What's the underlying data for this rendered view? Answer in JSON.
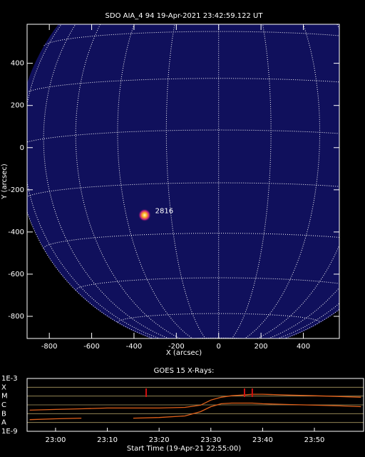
{
  "chart_data": [
    {
      "type": "image",
      "title": "SDO AIA_4 94 19-Apr-2021 23:42:59.122 UT",
      "xlabel": "X (arcsec)",
      "ylabel": "Y (arcsec)",
      "xlim": [
        -905,
        570
      ],
      "ylim": [
        -905,
        585
      ],
      "xticks": [
        -800,
        -600,
        -400,
        -200,
        0,
        200,
        400
      ],
      "yticks": [
        -800,
        -600,
        -400,
        -200,
        0,
        200,
        400
      ],
      "annotations": [
        "2816"
      ]
    },
    {
      "type": "line",
      "title": "GOES 15 X-Rays:",
      "xlabel": "Start Time (19-Apr-21 22:55:00)",
      "ylog": true,
      "xlim": [
        -0.5,
        64.5
      ],
      "ylim": [
        1e-09,
        0.001
      ],
      "xticks": [
        {
          "value": 5,
          "label": "23:00"
        },
        {
          "value": 15,
          "label": "23:10"
        },
        {
          "value": 25,
          "label": "23:20"
        },
        {
          "value": 35,
          "label": "23:30"
        },
        {
          "value": 45,
          "label": "23:40"
        },
        {
          "value": 55,
          "label": "23:50"
        }
      ],
      "yticks": [
        {
          "value": 0.001,
          "label": "1E-3"
        },
        {
          "value": 0.0001,
          "label": "X"
        },
        {
          "value": 1e-05,
          "label": "M"
        },
        {
          "value": 1e-06,
          "label": "C"
        },
        {
          "value": 1e-07,
          "label": "B"
        },
        {
          "value": 1e-08,
          "label": "A"
        },
        {
          "value": 1e-09,
          "label": "1E-9"
        }
      ],
      "grid": true,
      "x": [
        0,
        5,
        10,
        15,
        20,
        25,
        30,
        33,
        35,
        37,
        39,
        41,
        43,
        45,
        50,
        55,
        60,
        64
      ],
      "series": [
        {
          "color": "#e0601a",
          "values": [
            2.5e-07,
            3e-07,
            3.6e-07,
            4.4e-07,
            4.4e-07,
            4.4e-07,
            5.2e-07,
            9.3e-07,
            3.5e-06,
            7.4e-06,
            1.1e-05,
            1.3e-05,
            1.6e-05,
            1.6e-05,
            1.3e-05,
            1.1e-05,
            8.9e-06,
            7.4e-06
          ]
        },
        {
          "color": "#e0601a",
          "values": [
            2.1e-08,
            2.6e-08,
            3.1e-08,
            null,
            3.1e-08,
            3.7e-08,
            5.5e-08,
            1.7e-07,
            6.3e-07,
            1.35e-06,
            1.6e-06,
            1.6e-06,
            1.6e-06,
            1.35e-06,
            1.1e-06,
            9.3e-07,
            7.7e-07,
            6.3e-07
          ]
        }
      ],
      "markers": [
        22.5,
        41.5,
        43
      ],
      "marker_color": "#d01010"
    }
  ]
}
